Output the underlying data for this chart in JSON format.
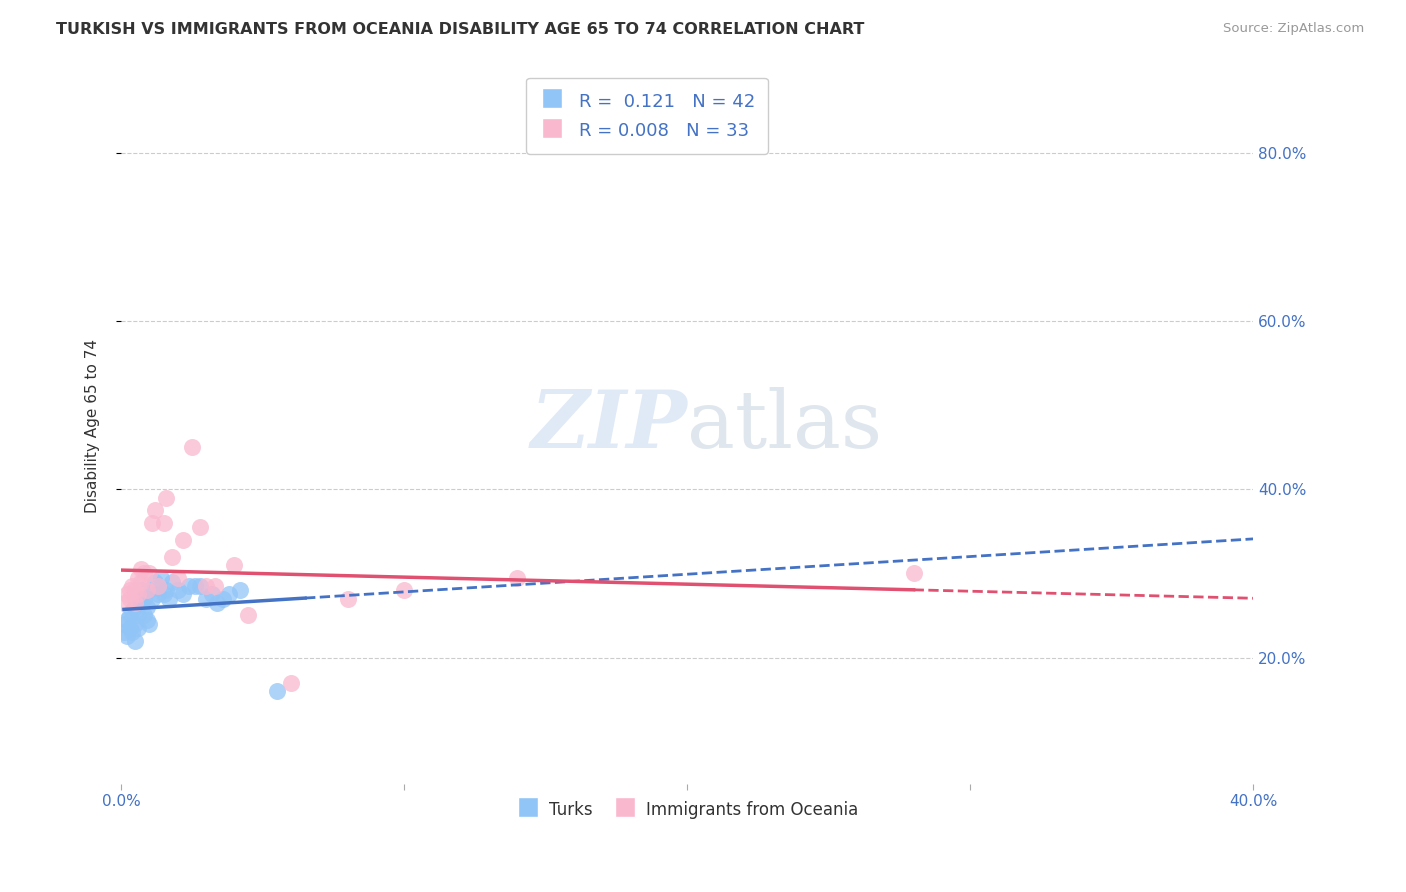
{
  "title": "TURKISH VS IMMIGRANTS FROM OCEANIA DISABILITY AGE 65 TO 74 CORRELATION CHART",
  "source": "Source: ZipAtlas.com",
  "ylabel": "Disability Age 65 to 74",
  "legend_label1": "Turks",
  "legend_label2": "Immigrants from Oceania",
  "r1": "0.121",
  "n1": "42",
  "r2": "0.008",
  "n2": "33",
  "watermark_zip": "ZIP",
  "watermark_atlas": "atlas",
  "color_blue": "#92C5F7",
  "color_pink": "#F9B8CE",
  "line_blue": "#4472C4",
  "line_pink": "#E05070",
  "turks_x": [
    0.001,
    0.001,
    0.002,
    0.002,
    0.003,
    0.003,
    0.004,
    0.004,
    0.005,
    0.005,
    0.005,
    0.006,
    0.006,
    0.006,
    0.007,
    0.007,
    0.008,
    0.008,
    0.009,
    0.009,
    0.01,
    0.01,
    0.011,
    0.012,
    0.013,
    0.014,
    0.015,
    0.016,
    0.017,
    0.018,
    0.02,
    0.022,
    0.024,
    0.026,
    0.028,
    0.03,
    0.032,
    0.034,
    0.036,
    0.038,
    0.042,
    0.055
  ],
  "turks_y": [
    0.24,
    0.23,
    0.245,
    0.225,
    0.235,
    0.25,
    0.23,
    0.255,
    0.22,
    0.24,
    0.26,
    0.235,
    0.25,
    0.27,
    0.28,
    0.265,
    0.25,
    0.27,
    0.26,
    0.245,
    0.28,
    0.24,
    0.27,
    0.29,
    0.275,
    0.295,
    0.275,
    0.28,
    0.27,
    0.29,
    0.28,
    0.275,
    0.285,
    0.285,
    0.285,
    0.27,
    0.275,
    0.265,
    0.27,
    0.275,
    0.28,
    0.16
  ],
  "oceania_x": [
    0.001,
    0.002,
    0.003,
    0.003,
    0.004,
    0.005,
    0.005,
    0.006,
    0.006,
    0.007,
    0.007,
    0.008,
    0.009,
    0.01,
    0.011,
    0.012,
    0.013,
    0.015,
    0.016,
    0.018,
    0.02,
    0.022,
    0.025,
    0.028,
    0.03,
    0.033,
    0.04,
    0.045,
    0.06,
    0.08,
    0.1,
    0.14,
    0.28
  ],
  "oceania_y": [
    0.265,
    0.275,
    0.27,
    0.28,
    0.285,
    0.265,
    0.28,
    0.275,
    0.295,
    0.29,
    0.305,
    0.3,
    0.28,
    0.3,
    0.36,
    0.375,
    0.285,
    0.36,
    0.39,
    0.32,
    0.295,
    0.34,
    0.45,
    0.355,
    0.285,
    0.285,
    0.31,
    0.25,
    0.17,
    0.27,
    0.28,
    0.295,
    0.3
  ],
  "xlim": [
    0.0,
    0.4
  ],
  "ylim": [
    0.05,
    0.9
  ],
  "ytick_vals": [
    0.2,
    0.4,
    0.6,
    0.8
  ],
  "ytick_labels": [
    "20.0%",
    "40.0%",
    "60.0%",
    "80.0%"
  ],
  "xtick_vals": [
    0.0,
    0.1,
    0.2,
    0.3,
    0.4
  ],
  "xtick_labels_show": [
    "0.0%",
    "40.0%"
  ]
}
